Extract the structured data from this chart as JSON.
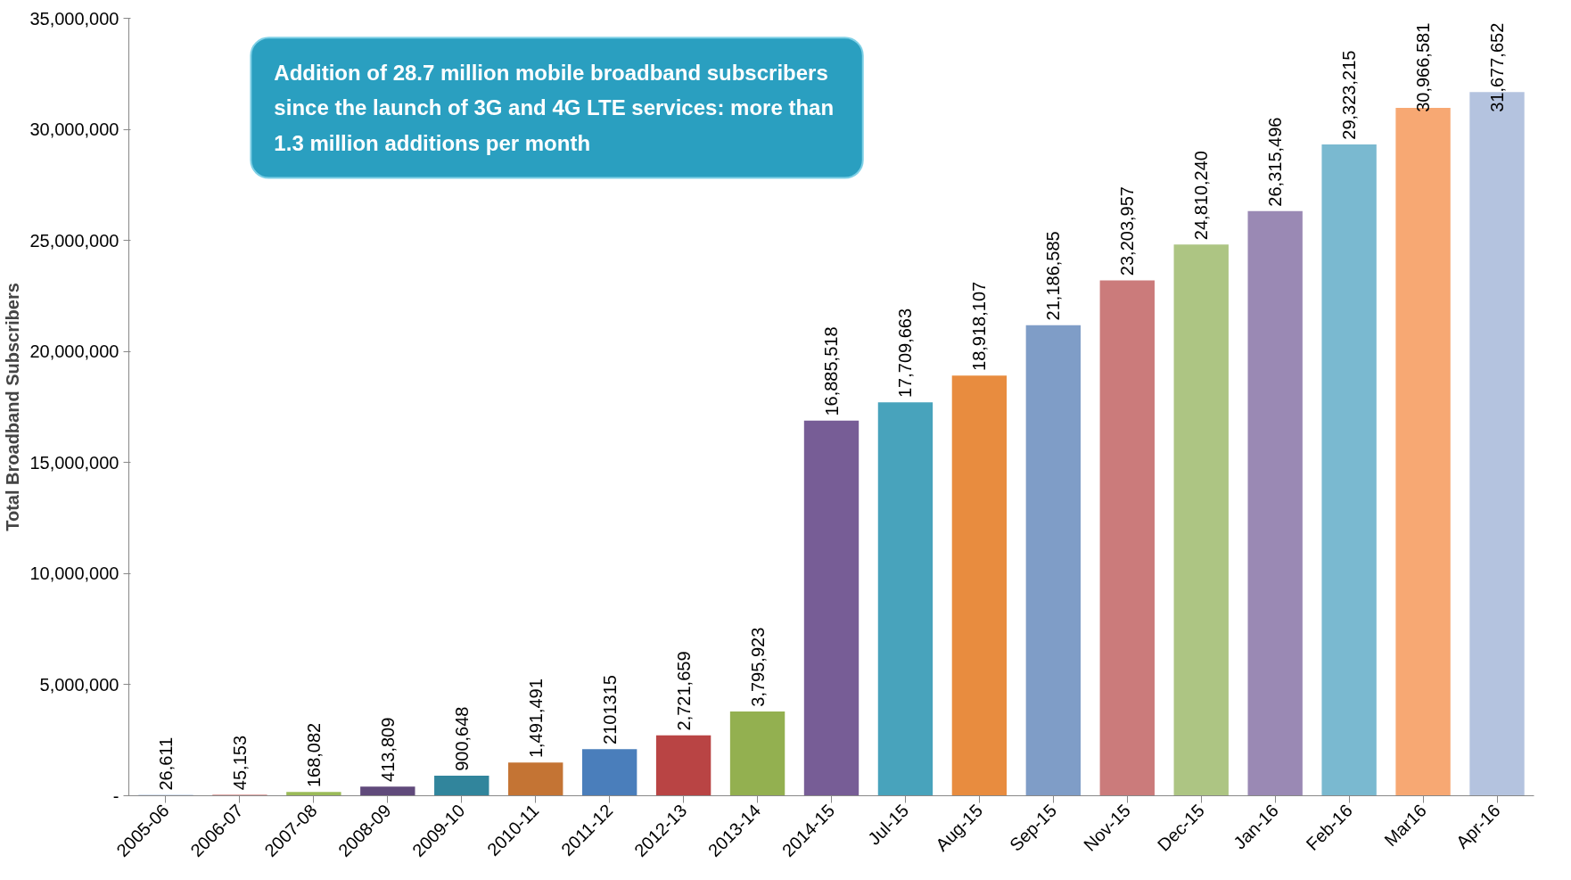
{
  "chart_data": {
    "type": "bar",
    "ylabel": "Total Broadband Subscribers",
    "categories": [
      "2005-06",
      "2006-07",
      "2007-08",
      "2008-09",
      "2009-10",
      "2010-11",
      "2011-12",
      "2012-13",
      "2013-14",
      "2014-15",
      "Jul-15",
      "Aug-15",
      "Sep-15",
      "Nov-15",
      "Dec-15",
      "Jan-16",
      "Feb-16",
      "Mar16",
      "Apr-16"
    ],
    "values": [
      26611,
      45153,
      168082,
      413809,
      900648,
      1491491,
      2101315,
      2721659,
      3795923,
      16885518,
      17709663,
      18918107,
      21186585,
      23203957,
      24810240,
      26315496,
      29323215,
      30966581,
      31677652
    ],
    "value_labels": [
      "26,611",
      "45,153",
      "168,082",
      "413,809",
      "900,648",
      "1,491,491",
      "2101315",
      "2,721,659",
      "3,795,923",
      "16,885,518",
      "17,709,663",
      "18,918,107",
      "21,186,585",
      "23,203,957",
      "24,810,240",
      "26,315,496",
      "29,323,215",
      "30,966,581",
      "31,677,652"
    ],
    "colors": [
      "#4f81bd",
      "#c0504d",
      "#9bbb59",
      "#604a7b",
      "#31859c",
      "#c47434",
      "#4a7ebb",
      "#b94444",
      "#93b050",
      "#775d96",
      "#48a3bc",
      "#e88c3f",
      "#7f9dc7",
      "#cb7b7b",
      "#adc583",
      "#9a89b4",
      "#7ab9d0",
      "#f7a873",
      "#b4c3df"
    ],
    "ylim": [
      0,
      35000000
    ],
    "yticks": [
      {
        "value": 0,
        "label": "-"
      },
      {
        "value": 5000000,
        "label": "5,000,000"
      },
      {
        "value": 10000000,
        "label": "10,000,000"
      },
      {
        "value": 15000000,
        "label": "15,000,000"
      },
      {
        "value": 20000000,
        "label": "20,000,000"
      },
      {
        "value": 25000000,
        "label": "25,000,000"
      },
      {
        "value": 30000000,
        "label": "30,000,000"
      },
      {
        "value": 35000000,
        "label": "35,000,000"
      }
    ],
    "grid": false,
    "annotations": [
      "Addition of 28.7 million mobile broadband subscribers since the launch of 3G and  4G LTE services: more than 1.3 million additions per month"
    ]
  }
}
